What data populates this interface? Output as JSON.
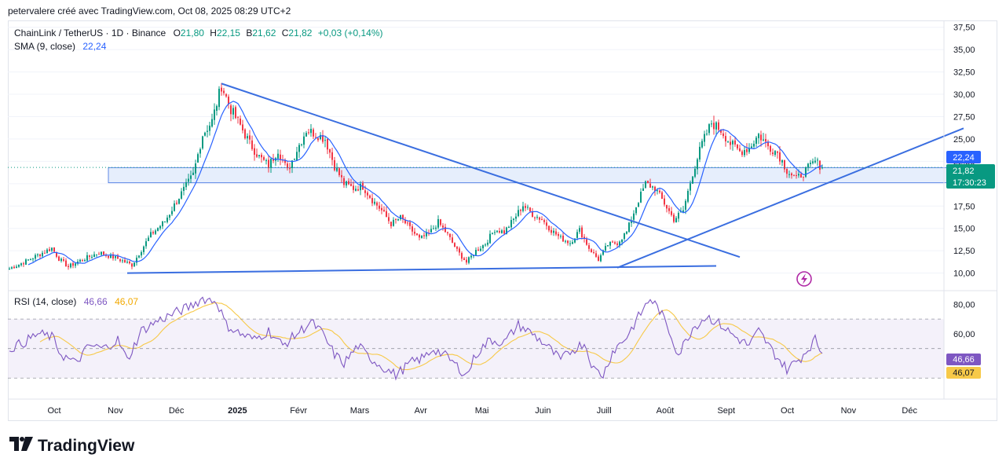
{
  "caption": "petervalere créé avec TradingView.com, Oct 08, 2025 08:29 UTC+2",
  "legend": {
    "symbol": "ChainLink / TetherUS · 1D · Binance",
    "o_label": "O",
    "o_value": "21,80",
    "h_label": "H",
    "h_value": "22,15",
    "l_label": "B",
    "l_value": "21,62",
    "c_label": "C",
    "c_value": "21,82",
    "change": "+0,03 (+0,14%)",
    "sma_label": "SMA (9, close)",
    "sma_value": "22,24",
    "rsi_label": "RSI (14, close)",
    "rsi_value": "46,66",
    "rsi_ma_value": "46,07"
  },
  "badges": {
    "sma": "22,24",
    "price": "21,82",
    "countdown": "17:30:23",
    "rsi": "46,66",
    "rsi_ma": "46,07"
  },
  "brand": "TradingView",
  "colors": {
    "up": "#089981",
    "down": "#f23645",
    "sma": "#2962ff",
    "trendline": "#3a6ee0",
    "zone_fill": "#dbe7fb",
    "zone_border": "#3a6ee0",
    "rsi": "#7e57c2",
    "rsi_ma": "#f7c948",
    "rsi_band": "#ede7f6",
    "price_line": "#089981"
  },
  "chart_data": {
    "type": "candlestick",
    "price_axis": {
      "ticks": [
        "37,50",
        "35,00",
        "32,50",
        "30,00",
        "27,50",
        "25,00",
        "22,50",
        "20,00",
        "17,50",
        "15,00",
        "12,50",
        "10,00"
      ],
      "range": [
        9.0,
        38.0
      ]
    },
    "rsi_axis": {
      "ticks": [
        "80,00",
        "60,00"
      ],
      "range": [
        20,
        85
      ],
      "bands": [
        70,
        50,
        30
      ]
    },
    "time_axis": [
      "Oct",
      "Nov",
      "Déc",
      "2025",
      "Févr",
      "Mars",
      "Avr",
      "Mai",
      "Juin",
      "Juill",
      "Août",
      "Sept",
      "Oct",
      "Nov",
      "Déc"
    ],
    "price_keys": [
      [
        0,
        10.5
      ],
      [
        6,
        11.2
      ],
      [
        12,
        12.0
      ],
      [
        18,
        12.8
      ],
      [
        21,
        11.6
      ],
      [
        25,
        10.7
      ],
      [
        30,
        11.4
      ],
      [
        38,
        12.3
      ],
      [
        46,
        11.6
      ],
      [
        52,
        10.9
      ],
      [
        56,
        12.6
      ],
      [
        60,
        14.3
      ],
      [
        66,
        15.8
      ],
      [
        72,
        18.5
      ],
      [
        78,
        21.0
      ],
      [
        82,
        25.5
      ],
      [
        86,
        27.0
      ],
      [
        90,
        31.0
      ],
      [
        94,
        28.3
      ],
      [
        98,
        26.5
      ],
      [
        102,
        24.5
      ],
      [
        106,
        23.0
      ],
      [
        110,
        22.0
      ],
      [
        114,
        23.8
      ],
      [
        118,
        21.4
      ],
      [
        122,
        23.8
      ],
      [
        126,
        26.0
      ],
      [
        130,
        25.6
      ],
      [
        134,
        25.0
      ],
      [
        138,
        22.0
      ],
      [
        142,
        20.0
      ],
      [
        146,
        19.5
      ],
      [
        150,
        19.7
      ],
      [
        154,
        18.2
      ],
      [
        158,
        17.0
      ],
      [
        162,
        15.5
      ],
      [
        166,
        16.2
      ],
      [
        170,
        15.0
      ],
      [
        174,
        13.8
      ],
      [
        178,
        14.4
      ],
      [
        182,
        15.7
      ],
      [
        186,
        14.3
      ],
      [
        190,
        12.5
      ],
      [
        194,
        11.2
      ],
      [
        198,
        12.5
      ],
      [
        202,
        13.3
      ],
      [
        206,
        14.9
      ],
      [
        210,
        14.6
      ],
      [
        214,
        16.0
      ],
      [
        218,
        17.6
      ],
      [
        222,
        16.6
      ],
      [
        226,
        16.0
      ],
      [
        230,
        14.8
      ],
      [
        234,
        13.9
      ],
      [
        238,
        13.4
      ],
      [
        242,
        14.8
      ],
      [
        246,
        12.8
      ],
      [
        250,
        11.5
      ],
      [
        254,
        13.2
      ],
      [
        258,
        13.4
      ],
      [
        262,
        14.6
      ],
      [
        266,
        17.5
      ],
      [
        270,
        20.0
      ],
      [
        274,
        19.5
      ],
      [
        278,
        17.8
      ],
      [
        282,
        16.0
      ],
      [
        286,
        17.0
      ],
      [
        290,
        21.2
      ],
      [
        294,
        24.5
      ],
      [
        298,
        26.8
      ],
      [
        302,
        26.0
      ],
      [
        306,
        24.5
      ],
      [
        310,
        23.6
      ],
      [
        314,
        24.0
      ],
      [
        318,
        25.5
      ],
      [
        322,
        24.2
      ],
      [
        326,
        23.5
      ],
      [
        330,
        21.5
      ],
      [
        334,
        20.5
      ],
      [
        338,
        21.5
      ],
      [
        342,
        22.5
      ],
      [
        345,
        21.8
      ]
    ],
    "rsi_keys": [
      [
        0,
        50
      ],
      [
        6,
        54
      ],
      [
        12,
        60
      ],
      [
        18,
        58
      ],
      [
        22,
        46
      ],
      [
        28,
        40
      ],
      [
        34,
        52
      ],
      [
        40,
        50
      ],
      [
        46,
        56
      ],
      [
        50,
        42
      ],
      [
        56,
        62
      ],
      [
        62,
        68
      ],
      [
        70,
        74
      ],
      [
        76,
        78
      ],
      [
        82,
        84
      ],
      [
        88,
        82
      ],
      [
        92,
        66
      ],
      [
        98,
        60
      ],
      [
        104,
        56
      ],
      [
        110,
        62
      ],
      [
        116,
        52
      ],
      [
        122,
        60
      ],
      [
        128,
        68
      ],
      [
        132,
        62
      ],
      [
        138,
        46
      ],
      [
        142,
        40
      ],
      [
        148,
        52
      ],
      [
        152,
        45
      ],
      [
        158,
        38
      ],
      [
        164,
        32
      ],
      [
        170,
        40
      ],
      [
        176,
        44
      ],
      [
        180,
        50
      ],
      [
        186,
        44
      ],
      [
        190,
        38
      ],
      [
        194,
        32
      ],
      [
        198,
        46
      ],
      [
        204,
        56
      ],
      [
        210,
        54
      ],
      [
        216,
        66
      ],
      [
        222,
        60
      ],
      [
        228,
        52
      ],
      [
        234,
        42
      ],
      [
        238,
        48
      ],
      [
        244,
        54
      ],
      [
        248,
        36
      ],
      [
        252,
        32
      ],
      [
        256,
        48
      ],
      [
        262,
        58
      ],
      [
        268,
        74
      ],
      [
        272,
        84
      ],
      [
        276,
        76
      ],
      [
        280,
        62
      ],
      [
        284,
        46
      ],
      [
        290,
        64
      ],
      [
        296,
        72
      ],
      [
        302,
        66
      ],
      [
        308,
        58
      ],
      [
        314,
        52
      ],
      [
        318,
        62
      ],
      [
        324,
        48
      ],
      [
        330,
        36
      ],
      [
        336,
        44
      ],
      [
        342,
        56
      ],
      [
        345,
        47
      ]
    ],
    "sma_period": 9,
    "rsi_period": 14,
    "last_candle": {
      "open": 21.8,
      "high": 22.15,
      "low": 21.62,
      "close": 21.82
    },
    "annotations": {
      "descending_trendline": [
        [
          90,
          31.2
        ],
        [
          310,
          11.8
        ]
      ],
      "lower_support_line": [
        [
          50,
          10.0
        ],
        [
          300,
          10.8
        ]
      ],
      "ascending_trendline": [
        [
          258,
          10.6
        ],
        [
          405,
          26.2
        ]
      ],
      "horizontal_zone": {
        "x_from": 42,
        "x_to": 405,
        "y_from": 20.1,
        "y_to": 21.8
      }
    }
  }
}
